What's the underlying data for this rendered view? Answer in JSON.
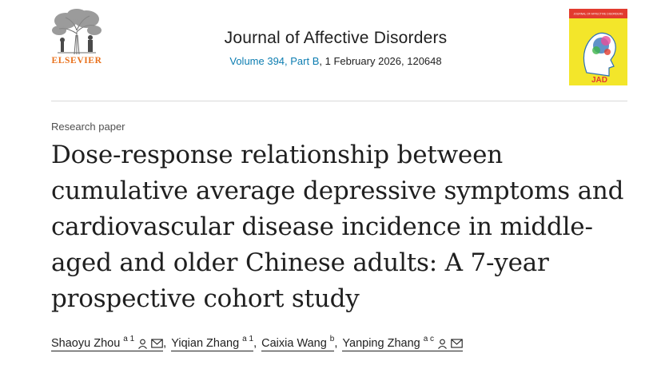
{
  "header": {
    "publisher": "ELSEVIER",
    "journal_name": "Journal of Affective Disorders",
    "issue_link": "Volume 394, Part B",
    "issue_rest": ", 1 February 2026, 120648",
    "cover_title": "JOURNAL OF AFFECTIVE DISORDERS",
    "cover_mark": "JAD"
  },
  "article": {
    "type": "Research paper",
    "title": "Dose-response relationship between cumulative average depressive symptoms and cardiovascular disease incidence in middle-aged and older Chinese adults: A 7-year prospective cohort study"
  },
  "authors": [
    {
      "name": "Shaoyu Zhou",
      "affil": "a 1",
      "separator": ""
    },
    {
      "name": "Yiqian Zhang",
      "affil": "a 1",
      "separator": ","
    },
    {
      "name": "Caixia Wang",
      "affil": "b",
      "separator": ","
    },
    {
      "name": "Yanping Zhang",
      "affil": "a c",
      "separator": ","
    }
  ],
  "colors": {
    "publisher_orange": "#e9711c",
    "link_blue": "#0c7db1",
    "cover_yellow": "#f3e62a"
  },
  "icons": [
    "elsevier-tree-icon",
    "person-icon",
    "envelope-icon"
  ]
}
